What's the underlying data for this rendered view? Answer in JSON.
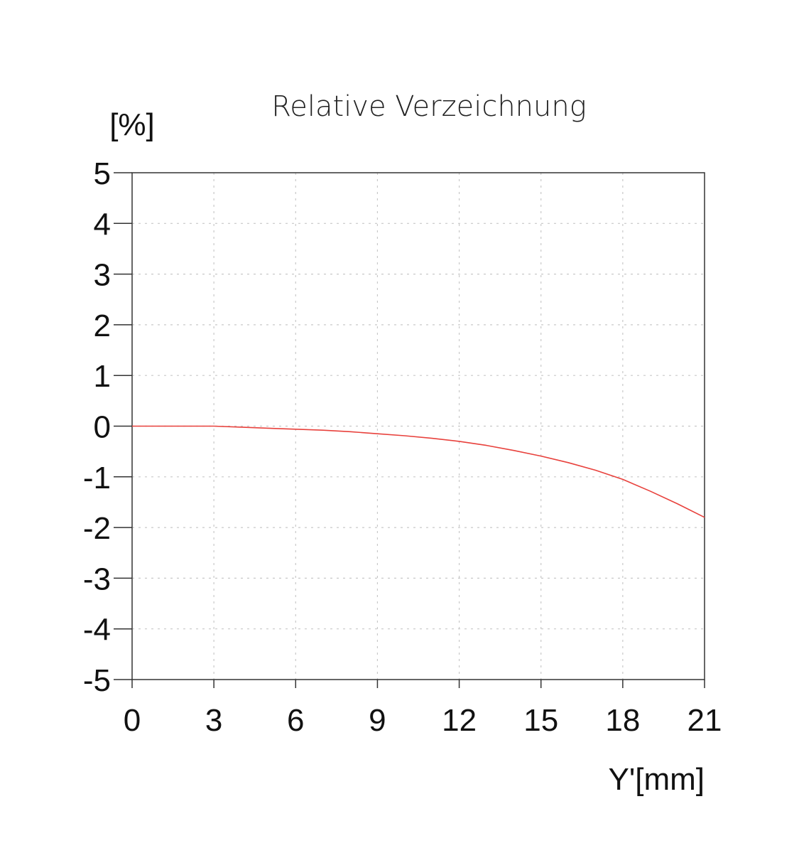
{
  "chart_data": {
    "type": "line",
    "title": "Relative Verzeichnung",
    "ylabel": "[%]",
    "xlabel": "Y'[mm]",
    "xlim": [
      0,
      21
    ],
    "ylim": [
      -5,
      5
    ],
    "x_ticks": [
      "0",
      "3",
      "6",
      "9",
      "12",
      "15",
      "18",
      "21"
    ],
    "y_ticks": [
      "5",
      "4",
      "3",
      "2",
      "1",
      "0",
      "-1",
      "-2",
      "-3",
      "-4",
      "-5"
    ],
    "x_tick_values": [
      0,
      3,
      6,
      9,
      12,
      15,
      18,
      21
    ],
    "y_tick_values": [
      5,
      4,
      3,
      2,
      1,
      0,
      -1,
      -2,
      -3,
      -4,
      -5
    ],
    "grid": true,
    "series": [
      {
        "color": "#e8413c",
        "x": [
          0,
          1,
          2,
          3,
          4,
          5,
          6,
          7,
          8,
          9,
          10,
          11,
          12,
          13,
          14,
          15,
          16,
          17,
          18,
          19,
          20,
          21
        ],
        "y": [
          0.0,
          0.0,
          0.0,
          0.0,
          -0.02,
          -0.04,
          -0.06,
          -0.08,
          -0.11,
          -0.15,
          -0.19,
          -0.24,
          -0.3,
          -0.38,
          -0.48,
          -0.59,
          -0.72,
          -0.87,
          -1.05,
          -1.28,
          -1.53,
          -1.8
        ]
      }
    ]
  }
}
